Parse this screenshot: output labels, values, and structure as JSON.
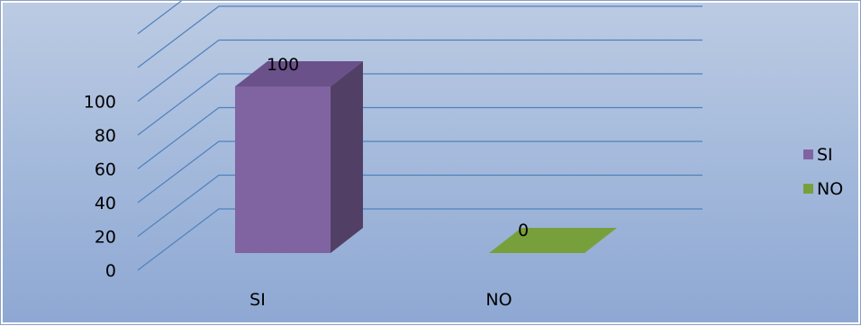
{
  "chart_data": {
    "type": "bar",
    "style": "3d-column",
    "categories": [
      "SI",
      "NO"
    ],
    "series": [
      {
        "name": "SI",
        "values": [
          100,
          null
        ],
        "color": "#8064a2"
      },
      {
        "name": "NO",
        "values": [
          null,
          0
        ],
        "color": "#77a03c"
      }
    ],
    "data_labels": [
      "100",
      "0"
    ],
    "y_ticks": [
      "0",
      "20",
      "40",
      "60",
      "80",
      "100"
    ],
    "ylim": [
      0,
      140
    ],
    "grid": true,
    "legend_position": "right",
    "title": "",
    "xlabel": "",
    "ylabel": ""
  },
  "colors": {
    "background_top": "#bccbe3",
    "background_bottom": "#8ea8d3",
    "gridline": "#4f81bd",
    "si_front": "#8064a2",
    "si_side": "#523f66",
    "si_top": "#6a5189",
    "no_top": "#77a03c"
  }
}
